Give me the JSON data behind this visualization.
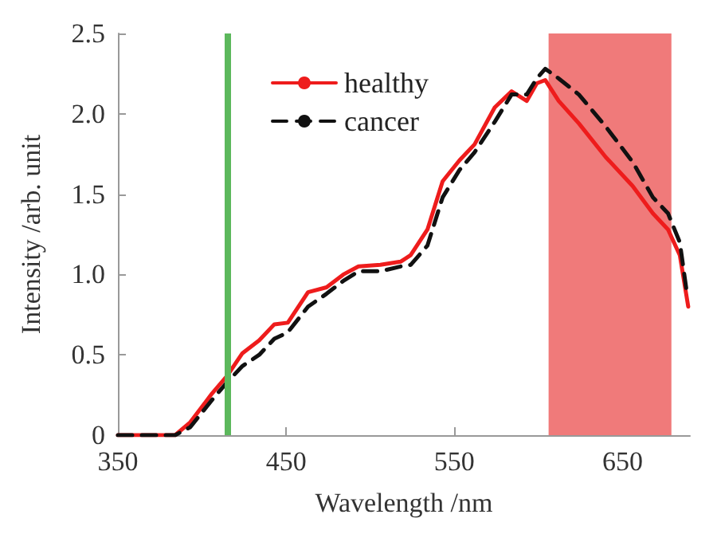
{
  "chart_data": {
    "type": "line",
    "xlabel": "Wavelength /nm",
    "ylabel": "Intensity /arb. unit",
    "xlim": [
      350,
      690
    ],
    "xticks": [
      350,
      450,
      550,
      650
    ],
    "ylim": [
      0,
      2.5
    ],
    "yticks": [
      0,
      {
        "value": 0.5,
        "label": "0.5"
      },
      {
        "value": 1,
        "label": "1.0"
      },
      {
        "value": 1.5,
        "label": "1.5"
      },
      {
        "value": 2,
        "label": "2.0"
      },
      {
        "value": 2.5,
        "label": "2.5"
      }
    ],
    "grid": false,
    "legend": "top",
    "marker": "none",
    "series": [
      {
        "name": "healthy",
        "color": "#ee1c1c",
        "line_style": "solid",
        "x": [
          350,
          384,
          393,
          406,
          415,
          424,
          434,
          443,
          451,
          463,
          474,
          484,
          493,
          506,
          518,
          524,
          534,
          543,
          553,
          562,
          574,
          584,
          593,
          599,
          604,
          612,
          624,
          640,
          656,
          668,
          677,
          684,
          689
        ],
        "values": [
          0,
          0,
          0.08,
          0.26,
          0.37,
          0.51,
          0.59,
          0.69,
          0.7,
          0.89,
          0.92,
          1.0,
          1.05,
          1.06,
          1.08,
          1.12,
          1.28,
          1.58,
          1.71,
          1.81,
          2.04,
          2.14,
          2.08,
          2.19,
          2.21,
          2.08,
          1.94,
          1.73,
          1.55,
          1.38,
          1.28,
          1.12,
          0.8
        ]
      },
      {
        "name": "cancer",
        "color": "#111111",
        "line_style": "dashed",
        "x": [
          350,
          384,
          393,
          406,
          415,
          424,
          434,
          443,
          451,
          463,
          474,
          484,
          493,
          506,
          518,
          524,
          534,
          543,
          553,
          562,
          574,
          584,
          593,
          599,
          604,
          612,
          624,
          640,
          656,
          668,
          677,
          684,
          688
        ],
        "values": [
          0,
          0,
          0.05,
          0.22,
          0.33,
          0.43,
          0.5,
          0.6,
          0.64,
          0.8,
          0.88,
          0.96,
          1.02,
          1.02,
          1.05,
          1.06,
          1.18,
          1.48,
          1.65,
          1.76,
          1.95,
          2.12,
          2.12,
          2.22,
          2.28,
          2.22,
          2.12,
          1.92,
          1.7,
          1.48,
          1.38,
          1.2,
          0.9
        ]
      }
    ],
    "ref_lines": [
      {
        "axis": "x",
        "value": 415,
        "color": "#5cb85c"
      }
    ],
    "bands": [
      {
        "axis": "x",
        "from": 606,
        "to": 679,
        "color": "#f07a7a"
      }
    ]
  }
}
